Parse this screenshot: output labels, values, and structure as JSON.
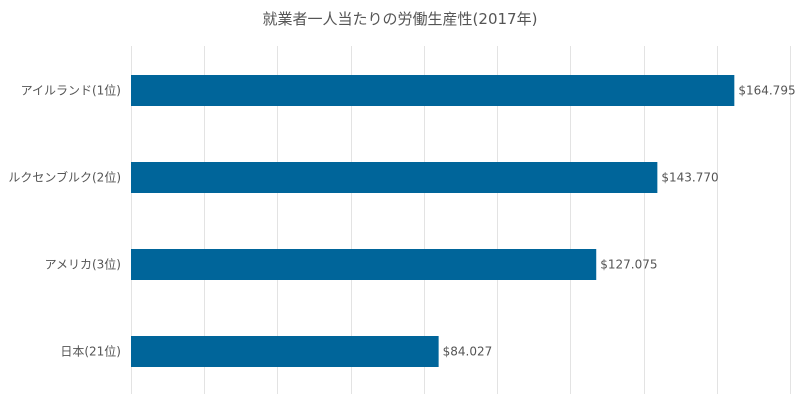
{
  "chart_data": {
    "type": "bar",
    "orientation": "horizontal",
    "title": "就業者一人当たりの労働生産性(2017年)",
    "categories": [
      "アイルランド(1位)",
      "ルクセンブルク(2位)",
      "アメリカ(3位)",
      "日本(21位)"
    ],
    "values": [
      164795,
      143770,
      127075,
      84027
    ],
    "value_labels": [
      "$164.795",
      "$143.770",
      "$127.075",
      "$84.027"
    ],
    "xlim": [
      0,
      180000
    ],
    "grid": true,
    "legend": "none",
    "bar_color": "#00659a"
  }
}
